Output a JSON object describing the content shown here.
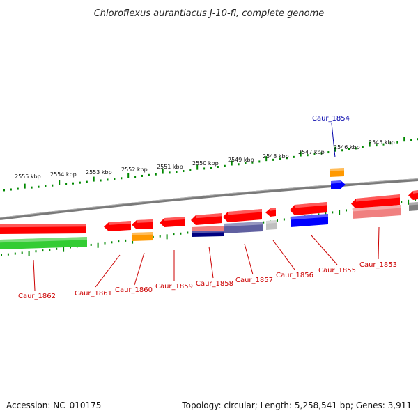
{
  "title": "Chloroflexus aurantiacus J-10-fl, complete genome",
  "footer": {
    "accession": "Accession: NC_010175",
    "summary": "Topology: circular; Length: 5,258,541 bp; Genes: 3,911"
  },
  "colors": {
    "forward_gene": "#ff0000",
    "red_light": "#f08080",
    "green": "#33cc33",
    "orange": "#ff9900",
    "navy": "#000080",
    "slate": "#6060a0",
    "blue": "#0000ff",
    "gray": "#c0c0c0",
    "dark_gray": "#808080",
    "tick_green": "#008800",
    "backbone": "#888888",
    "label_red": "#cc0000",
    "label_blue": "#0000aa"
  },
  "scale_labels": [
    "2545 kbp",
    "2546 kbp",
    "2547 kbp",
    "2548 kbp",
    "2549 kbp",
    "2550 kbp",
    "2551 kbp",
    "2552 kbp",
    "2553 kbp",
    "2554 kbp",
    "2555 kbp"
  ],
  "gene_labels": [
    {
      "id": "Caur_1854",
      "color": "label_blue"
    },
    {
      "id": "Caur_1853",
      "color": "label_red"
    },
    {
      "id": "Caur_1855",
      "color": "label_red"
    },
    {
      "id": "Caur_1856",
      "color": "label_red"
    },
    {
      "id": "Caur_1857",
      "color": "label_red"
    },
    {
      "id": "Caur_1858",
      "color": "label_red"
    },
    {
      "id": "Caur_1859",
      "color": "label_red"
    },
    {
      "id": "Caur_1860",
      "color": "label_red"
    },
    {
      "id": "Caur_1861",
      "color": "label_red"
    },
    {
      "id": "Caur_1862",
      "color": "label_red"
    }
  ]
}
